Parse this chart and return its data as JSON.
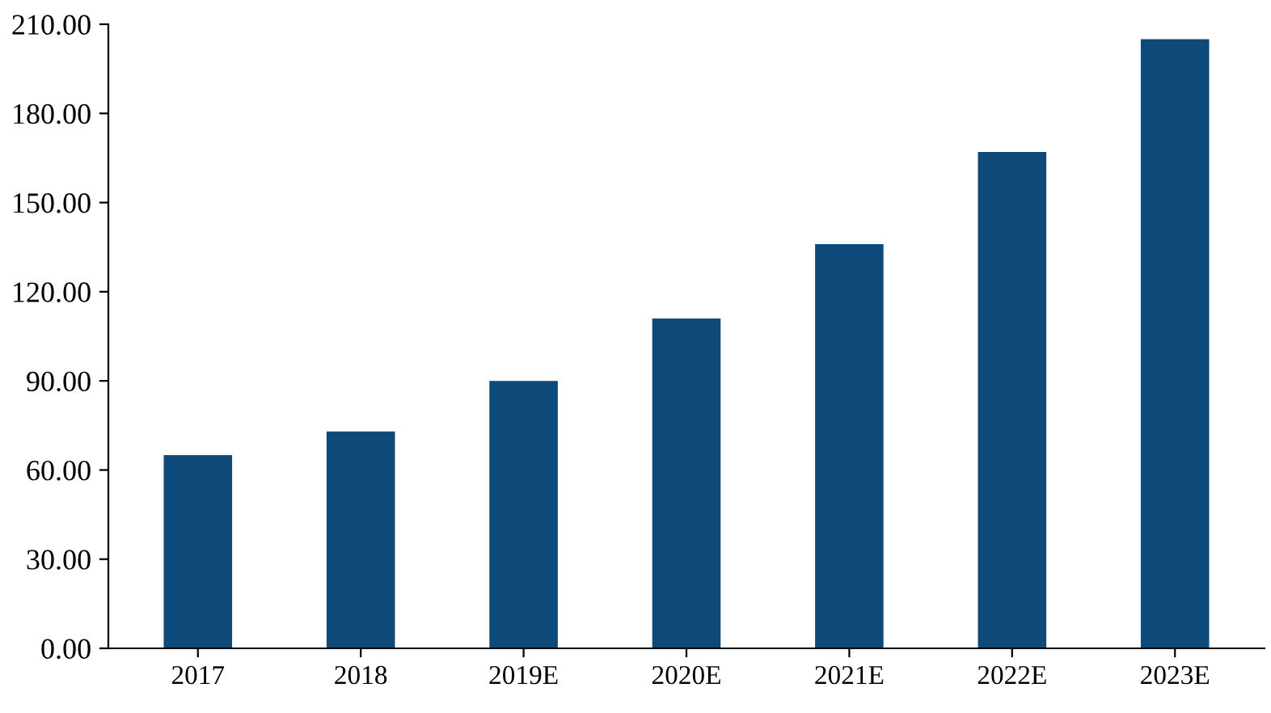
{
  "chart_data": {
    "type": "bar",
    "categories": [
      "2017",
      "2018",
      "2019E",
      "2020E",
      "2021E",
      "2022E",
      "2023E"
    ],
    "values": [
      65,
      73,
      90,
      111,
      136,
      167,
      205
    ],
    "color": "#0d4a79",
    "ylim": [
      0,
      210
    ],
    "yticks": [
      {
        "value": 0,
        "label": "0.00"
      },
      {
        "value": 30,
        "label": "30.00"
      },
      {
        "value": 60,
        "label": "60.00"
      },
      {
        "value": 90,
        "label": "90.00"
      },
      {
        "value": 120,
        "label": "120.00"
      },
      {
        "value": 150,
        "label": "150.00"
      },
      {
        "value": 180,
        "label": "180.00"
      },
      {
        "value": 210,
        "label": "210.00"
      }
    ],
    "grid": false
  }
}
